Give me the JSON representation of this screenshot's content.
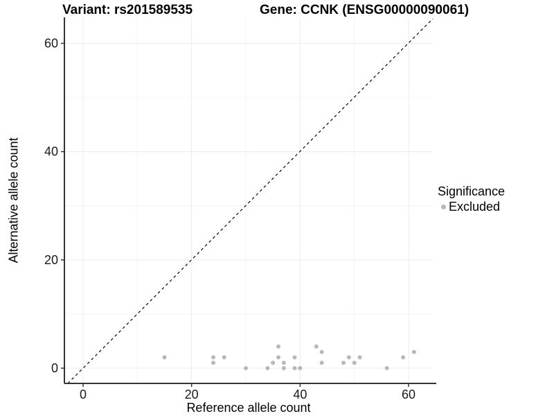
{
  "header": {
    "variant_title": "Variant: rs201589535",
    "gene_title": "Gene: CCNK (ENSG00000090061)"
  },
  "axes": {
    "x_label": "Reference allele count",
    "y_label": "Alternative allele count",
    "x_tick_labels": [
      "0",
      "20",
      "40",
      "60"
    ],
    "y_tick_labels": [
      "0",
      "20",
      "40",
      "60"
    ]
  },
  "legend": {
    "title": "Significance",
    "items": [
      {
        "label": "Excluded",
        "color": "#b8b8b8"
      }
    ]
  },
  "colors": {
    "point": "#b8b8b8",
    "grid_major": "#ececec",
    "grid_minor": "#f4f4f4",
    "axis_line": "#333333",
    "tick_text": "#1a1a1a",
    "identity_line": "#000000",
    "background": "#ffffff"
  },
  "chart_data": {
    "type": "scatter",
    "title": "Variant: rs201589535   Gene: CCNK (ENSG00000090061)",
    "xlabel": "Reference allele count",
    "ylabel": "Alternative allele count",
    "xlim": [
      -3,
      65
    ],
    "ylim": [
      -3,
      65
    ],
    "x_ticks": [
      0,
      20,
      40,
      60
    ],
    "y_ticks": [
      0,
      20,
      40,
      60
    ],
    "x_minor_ticks": [
      10,
      30,
      50
    ],
    "y_minor_ticks": [
      10,
      30,
      50
    ],
    "grid": true,
    "legend_position": "right",
    "identity_line": {
      "style": "dashed",
      "equation": "y = x"
    },
    "series": [
      {
        "name": "Excluded",
        "color": "#b8b8b8",
        "points": [
          [
            15,
            2
          ],
          [
            24,
            1
          ],
          [
            24,
            2
          ],
          [
            26,
            2
          ],
          [
            30,
            0
          ],
          [
            34,
            0
          ],
          [
            35,
            1
          ],
          [
            36,
            2
          ],
          [
            36,
            4
          ],
          [
            37,
            0
          ],
          [
            37,
            1
          ],
          [
            39,
            0
          ],
          [
            39,
            2
          ],
          [
            40,
            0
          ],
          [
            43,
            4
          ],
          [
            44,
            1
          ],
          [
            44,
            3
          ],
          [
            48,
            1
          ],
          [
            49,
            2
          ],
          [
            50,
            1
          ],
          [
            51,
            2
          ],
          [
            56,
            0
          ],
          [
            59,
            2
          ],
          [
            61,
            3
          ]
        ]
      }
    ]
  }
}
